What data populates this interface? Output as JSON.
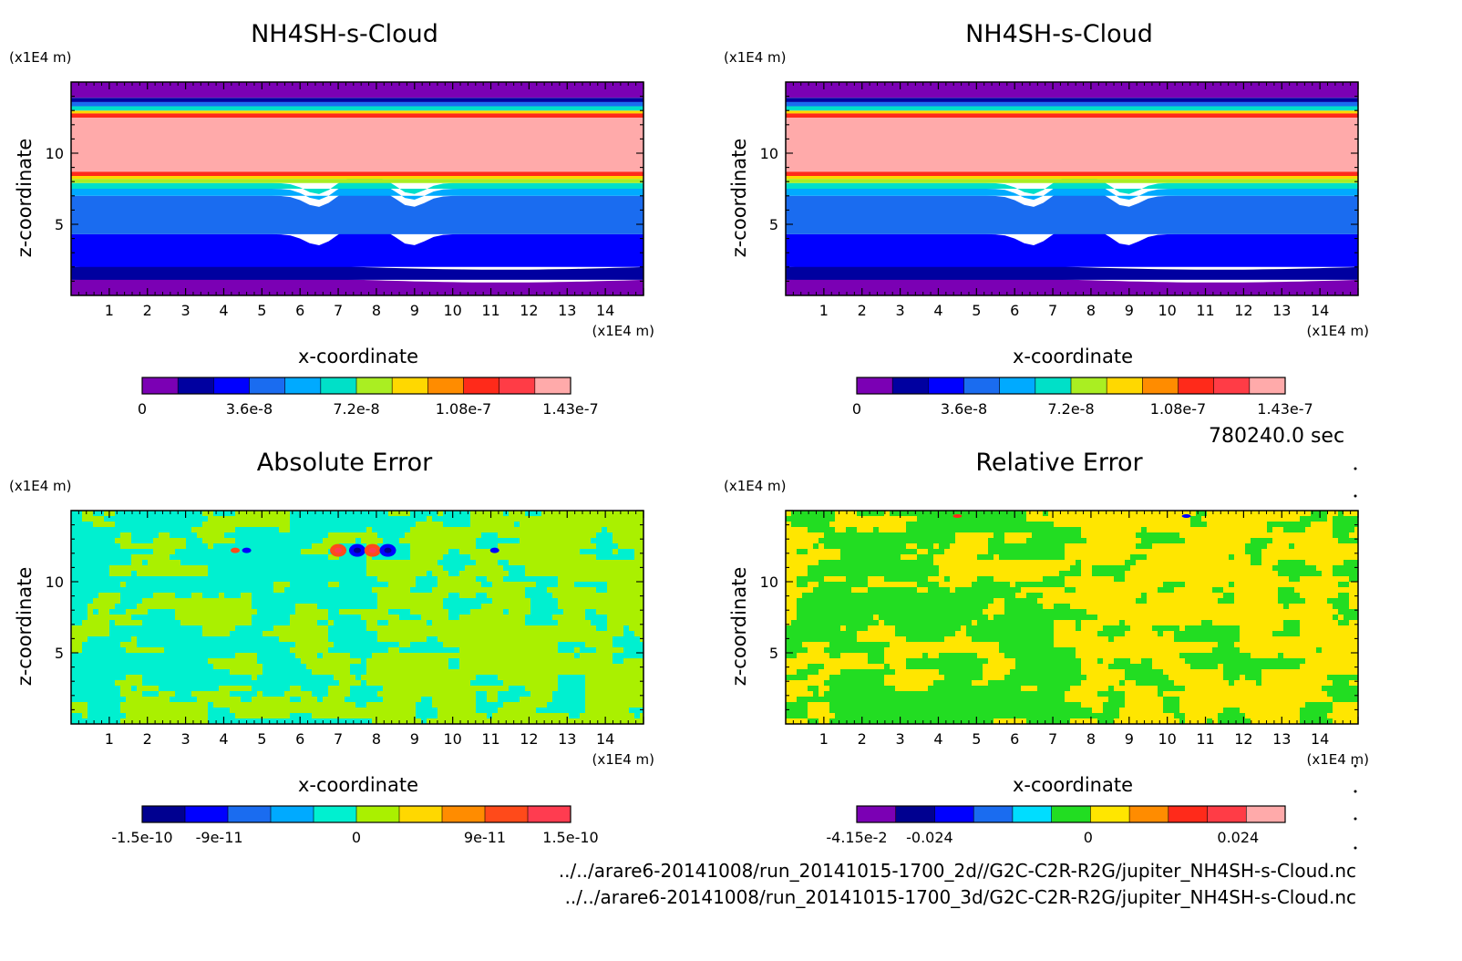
{
  "time_label": "780240.0 sec",
  "file_paths": [
    "../../arare6-20141008/run_20141015-1700_2d//G2C-C2R-R2G/jupiter_NH4SH-s-Cloud.nc",
    "../../arare6-20141008/run_20141015-1700_3d/G2C-C2R-R2G/jupiter_NH4SH-s-Cloud.nc"
  ],
  "colors": {
    "cloud_scale": [
      "#7b00b4",
      "#0000a0",
      "#0000ff",
      "#1a6cf0",
      "#00aaff",
      "#00e0c8",
      "#aaee22",
      "#ffd800",
      "#ff8c00",
      "#ff2a1a",
      "#ff3c46",
      "#ffaaaa"
    ],
    "abs_scale": [
      "#000090",
      "#0000ff",
      "#1a6cf0",
      "#00aaff",
      "#00f0d0",
      "#aaf000",
      "#ffd800",
      "#ff8c00",
      "#ff4a1a",
      "#ff3c50"
    ],
    "rel_scale": [
      "#7b00b4",
      "#000090",
      "#0000ff",
      "#1a6cf0",
      "#00ddff",
      "#22dd22",
      "#ffe600",
      "#ff8c00",
      "#ff2a1a",
      "#ff3c46",
      "#ffaaaa"
    ]
  },
  "chart_data": [
    {
      "type": "heatmap",
      "title": "NH4SH-s-Cloud",
      "xlabel": "x-coordinate",
      "ylabel": "z-coordinate",
      "x_unit": "(x1E4 m)",
      "y_unit": "(x1E4 m)",
      "xlim": [
        0,
        15
      ],
      "ylim": [
        0,
        15
      ],
      "xticks": [
        "1",
        "2",
        "3",
        "4",
        "5",
        "6",
        "7",
        "8",
        "9",
        "10",
        "11",
        "12",
        "13",
        "14"
      ],
      "yticks": [
        "5",
        "10"
      ],
      "colorbar_labels": [
        "0",
        "3.6e-8",
        "7.2e-8",
        "1.08e-7",
        "1.43e-7"
      ],
      "levels": [
        0,
        1.43e-07
      ],
      "bands": [
        {
          "z_top": 1.1,
          "level": 0
        },
        {
          "z_top": 2.0,
          "level": 1
        },
        {
          "z_top": 4.3,
          "level": 2
        },
        {
          "z_top": 7.0,
          "level": 3
        },
        {
          "z_top": 7.5,
          "level": 4
        },
        {
          "z_top": 7.9,
          "level": 5
        },
        {
          "z_top": 8.2,
          "level": 6
        },
        {
          "z_top": 8.4,
          "level": 7
        },
        {
          "z_top": 8.7,
          "level": 9
        },
        {
          "z_top": 12.5,
          "level": 11
        },
        {
          "z_top": 12.8,
          "level": 9
        },
        {
          "z_top": 13.0,
          "level": 7
        },
        {
          "z_top": 13.3,
          "level": 5
        },
        {
          "z_top": 13.6,
          "level": 3
        },
        {
          "z_top": 13.9,
          "level": 1
        },
        {
          "z_top": 15.0,
          "level": 0
        }
      ]
    },
    {
      "type": "heatmap",
      "title": "NH4SH-s-Cloud",
      "xlabel": "x-coordinate",
      "ylabel": "z-coordinate",
      "x_unit": "(x1E4 m)",
      "y_unit": "(x1E4 m)",
      "xlim": [
        0,
        15
      ],
      "ylim": [
        0,
        15
      ],
      "xticks": [
        "1",
        "2",
        "3",
        "4",
        "5",
        "6",
        "7",
        "8",
        "9",
        "10",
        "11",
        "12",
        "13",
        "14"
      ],
      "yticks": [
        "5",
        "10"
      ],
      "colorbar_labels": [
        "0",
        "3.6e-8",
        "7.2e-8",
        "1.08e-7",
        "1.43e-7"
      ],
      "levels": [
        0,
        1.43e-07
      ]
    },
    {
      "type": "heatmap",
      "title": "Absolute Error",
      "xlabel": "x-coordinate",
      "ylabel": "z-coordinate",
      "x_unit": "(x1E4 m)",
      "y_unit": "(x1E4 m)",
      "xlim": [
        0,
        15
      ],
      "ylim": [
        0,
        15
      ],
      "xticks": [
        "1",
        "2",
        "3",
        "4",
        "5",
        "6",
        "7",
        "8",
        "9",
        "10",
        "11",
        "12",
        "13",
        "14"
      ],
      "yticks": [
        "5",
        "10"
      ],
      "colorbar_labels": [
        "-1.5e-10",
        "-9e-11",
        "0",
        "9e-11",
        "1.5e-10"
      ],
      "levels": [
        -1.5e-10,
        1.5e-10
      ],
      "features": [
        {
          "x": 7.0,
          "z": 12.2,
          "sign": "positive"
        },
        {
          "x": 7.5,
          "z": 12.2,
          "sign": "negative"
        },
        {
          "x": 7.9,
          "z": 12.2,
          "sign": "positive"
        },
        {
          "x": 8.3,
          "z": 12.2,
          "sign": "negative"
        },
        {
          "x": 4.3,
          "z": 12.2,
          "sign": "positive"
        },
        {
          "x": 4.6,
          "z": 12.2,
          "sign": "negative"
        },
        {
          "x": 11.1,
          "z": 12.2,
          "sign": "negative"
        }
      ]
    },
    {
      "type": "heatmap",
      "title": "Relative Error",
      "xlabel": "x-coordinate",
      "ylabel": "z-coordinate",
      "x_unit": "(x1E4 m)",
      "y_unit": "(x1E4 m)",
      "xlim": [
        0,
        15
      ],
      "ylim": [
        0,
        15
      ],
      "xticks": [
        "1",
        "2",
        "3",
        "4",
        "5",
        "6",
        "7",
        "8",
        "9",
        "10",
        "11",
        "12",
        "13",
        "14"
      ],
      "yticks": [
        "5",
        "10"
      ],
      "colorbar_labels": [
        "-4.15e-2",
        "-0.024",
        "0",
        "0.024"
      ],
      "levels": [
        -0.0415,
        0.0415
      ]
    }
  ]
}
